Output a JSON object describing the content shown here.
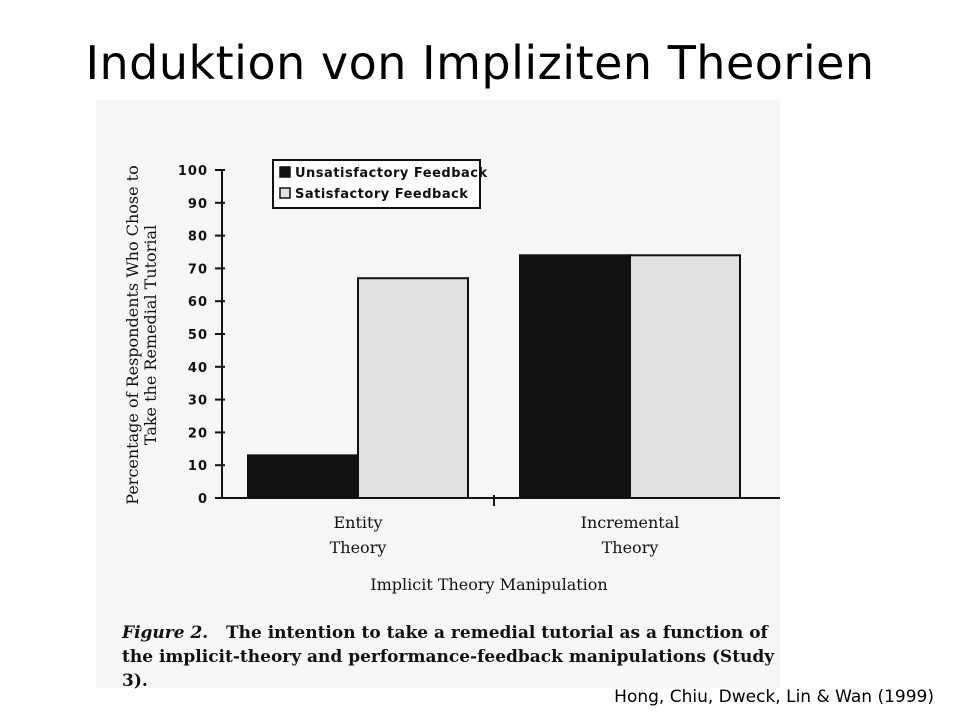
{
  "slide": {
    "title": "Induktion von Impliziten Theorien",
    "citation": "Hong, Chiu, Dweck, Lin & Wan (1999)"
  },
  "caption": {
    "label": "Figure 2.",
    "text": "The intention to take a remedial tutorial as a function of the implicit-theory and performance-feedback manipulations (Study 3)."
  },
  "colors": {
    "unsatisfactory": "#111111",
    "satisfactory": "#e2e2e2",
    "panel": "#f6f6f6"
  },
  "chart_data": {
    "type": "bar",
    "categories": [
      [
        "Entity",
        "Theory"
      ],
      [
        "Incremental",
        "Theory"
      ]
    ],
    "series": [
      {
        "name": "Unsatisfactory Feedback",
        "values": [
          13,
          74
        ]
      },
      {
        "name": "Satisfactory Feedback",
        "values": [
          67,
          74
        ]
      }
    ],
    "ylabel": [
      "Percentage of Respondents Who Chose to",
      "Take the Remedial Tutorial"
    ],
    "xlabel": "Implicit Theory Manipulation",
    "ylim": [
      0,
      100
    ],
    "yticks": [
      0,
      10,
      20,
      30,
      40,
      50,
      60,
      70,
      80,
      90,
      100
    ],
    "legend_position": "top-left",
    "grid": false
  }
}
